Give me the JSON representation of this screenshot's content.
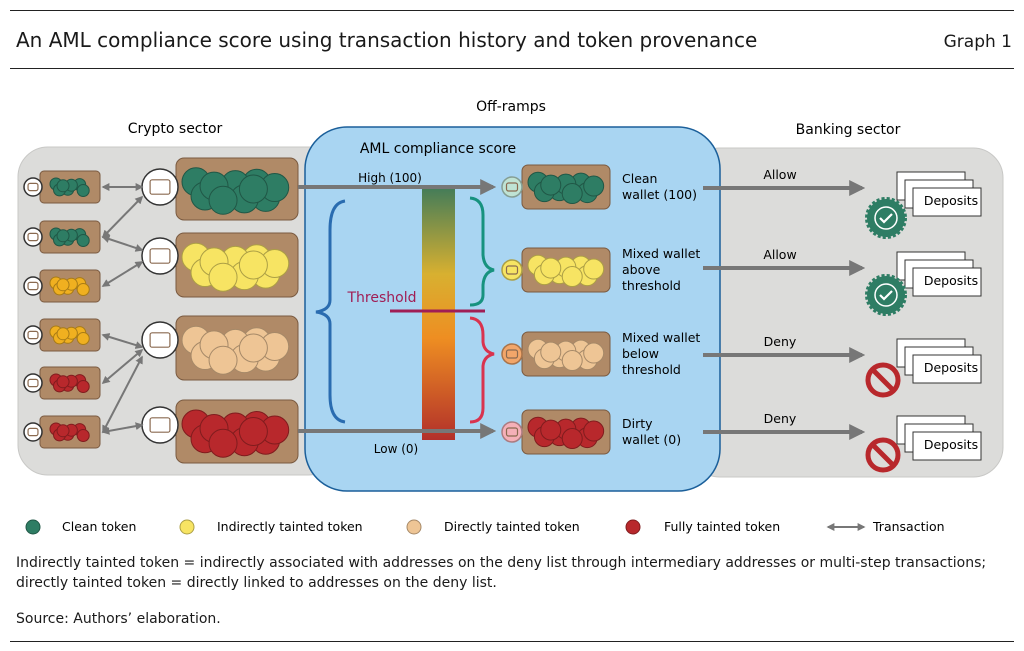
{
  "header": {
    "title": "An AML compliance score using transaction history and token provenance",
    "graph_label": "Graph 1"
  },
  "sections": {
    "crypto": "Crypto sector",
    "offramps": "Off-ramps",
    "banking": "Banking sector"
  },
  "score": {
    "title": "AML compliance score",
    "high": "High (100)",
    "low": "Low (0)",
    "threshold": "Threshold"
  },
  "wallets": [
    {
      "label_lines": [
        "Clean",
        "wallet (100)"
      ],
      "decision": "Allow",
      "outcome": "Deposits",
      "badge": "check-badge"
    },
    {
      "label_lines": [
        "Mixed wallet",
        "above",
        "threshold"
      ],
      "decision": "Allow",
      "outcome": "Deposits",
      "badge": "check-badge"
    },
    {
      "label_lines": [
        "Mixed wallet",
        "below",
        "threshold"
      ],
      "decision": "Deny",
      "outcome": "Deposits",
      "badge": "prohibited"
    },
    {
      "label_lines": [
        "Dirty",
        "wallet (0)"
      ],
      "decision": "Deny",
      "outcome": "Deposits",
      "badge": "prohibited"
    }
  ],
  "legend": [
    {
      "label": "Clean token",
      "color": "#2e7d64"
    },
    {
      "label": "Indirectly tainted token",
      "color": "#f7e463"
    },
    {
      "label": "Directly tainted token",
      "color": "#eec595"
    },
    {
      "label": "Fully tainted token",
      "color": "#b8282c"
    },
    {
      "label": "Transaction",
      "icon": "double-arrow"
    }
  ],
  "notes": {
    "line1": "Indirectly tainted token = indirectly associated with addresses on the deny list through intermediary addresses or multi-step transactions;",
    "line2": "directly tainted token = directly linked to addresses on the deny list.",
    "source": "Source: Authors’ elaboration."
  },
  "colors": {
    "clean": "#2e7d64",
    "indirect": "#f7e463",
    "direct": "#eec595",
    "full": "#b8282c",
    "panel": "#dcdcda",
    "score_panel": "#a9d5f2",
    "score_border": "#1b5f9a",
    "threshold": "#a01e55",
    "brown": "#b08a67",
    "allow_badge": "#2e7d64",
    "deny_badge": "#b8282c"
  }
}
